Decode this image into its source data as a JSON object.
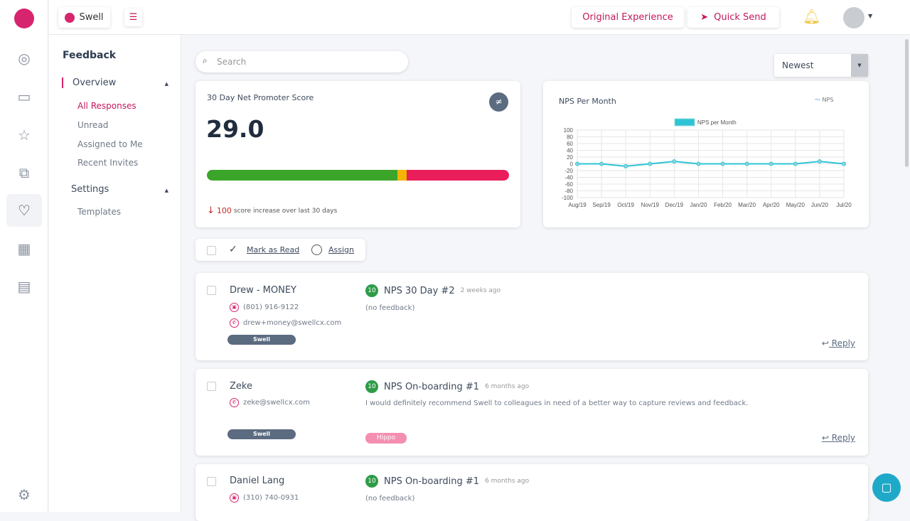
{
  "topbar": {
    "workspace": "Swell",
    "original_experience": "Original Experience",
    "quick_send": "Quick Send"
  },
  "sidebar": {
    "title": "Feedback",
    "overview": "Overview",
    "items": [
      "All Responses",
      "Unread",
      "Assigned to Me",
      "Recent Invites"
    ],
    "settings": "Settings",
    "settings_items": [
      "Templates"
    ]
  },
  "search": {
    "placeholder": "Search"
  },
  "sort": {
    "selected": "Newest"
  },
  "nps_card": {
    "title": "30 Day Net Promoter Score",
    "score": "29.0",
    "change_value": "100",
    "change_text": "score increase over last 30 days",
    "promoters_pct": 63,
    "passives_pct": 3,
    "detractors_pct": 34
  },
  "chart_data": {
    "type": "line",
    "title": "NPS Per Month",
    "legend_top": "NPS",
    "legend": "NPS per Month",
    "categories": [
      "Aug/19",
      "Sep/19",
      "Oct/19",
      "Nov/19",
      "Dec/19",
      "Jan/20",
      "Feb/20",
      "Mar/20",
      "Apr/20",
      "May/20",
      "Jun/20",
      "Jul/20"
    ],
    "values": [
      0,
      0,
      -7,
      0,
      7,
      0,
      0,
      0,
      0,
      0,
      7,
      0
    ],
    "ylim": [
      -100,
      100
    ],
    "yticks": [
      100,
      80,
      60,
      40,
      20,
      0,
      -20,
      -40,
      -60,
      -80,
      -100
    ],
    "grid": true,
    "color": "#2ec4d6"
  },
  "bulk": {
    "mark_read": "Mark as Read",
    "assign": "Assign"
  },
  "responses": [
    {
      "name": "Drew - MONEY",
      "phone": "(801) 916-9122",
      "email": "drew+money@swellcx.com",
      "tag": "Swell",
      "score": "10",
      "survey": "NPS 30 Day #2",
      "ago": "2 weeks ago",
      "feedback": "(no feedback)",
      "reply": "Reply"
    },
    {
      "name": "Zeke",
      "email": "zeke@swellcx.com",
      "tag": "Swell",
      "score": "10",
      "survey": "NPS On-boarding #1",
      "ago": "6 months ago",
      "feedback": "I would definitely recommend Swell to colleagues in need of a better way to capture reviews and feedback.",
      "label": "Hippo",
      "reply": "Reply"
    },
    {
      "name": "Daniel Lang",
      "phone": "(310) 740-0931",
      "score": "10",
      "survey": "NPS On-boarding #1",
      "ago": "6 months ago",
      "feedback": "(no feedback)"
    }
  ]
}
